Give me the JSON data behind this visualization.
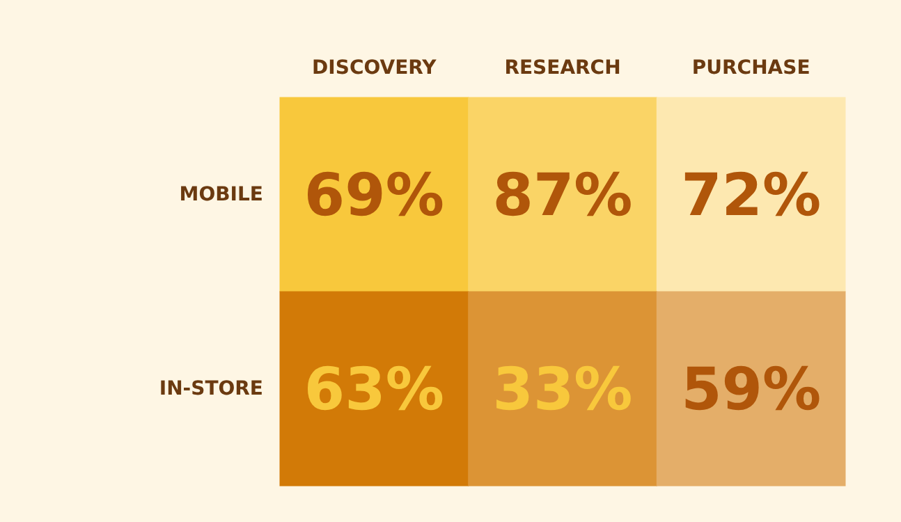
{
  "chart_data": {
    "type": "heatmap",
    "categories": [
      "DISCOVERY",
      "RESEARCH",
      "PURCHASE"
    ],
    "y_categories": [
      "MOBILE",
      "IN-STORE"
    ],
    "cells": [
      [
        69,
        87,
        72
      ],
      [
        63,
        33,
        59
      ]
    ],
    "cell_labels": [
      [
        "69%",
        "87%",
        "72%"
      ],
      [
        "63%",
        "33%",
        "59%"
      ]
    ],
    "colors": [
      [
        "#f8c83c",
        "#fad466",
        "#fde8b0"
      ],
      [
        "#d27a07",
        "#dc9435",
        "#e4ae69"
      ]
    ],
    "data_labels": true
  }
}
